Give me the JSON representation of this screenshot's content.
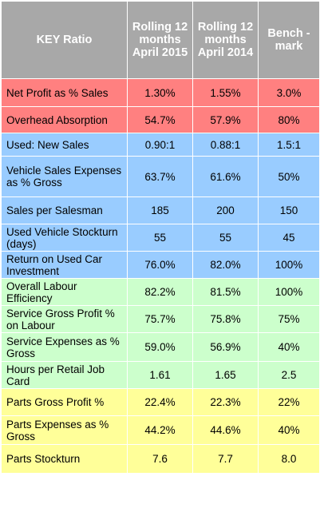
{
  "colors": {
    "header": "#a8a8a8",
    "red": "#ff8080",
    "blue": "#99ccff",
    "green": "#ccffcc",
    "yellow": "#ffff99"
  },
  "header": {
    "key": "KEY Ratio",
    "col2015": "Rolling 12 months April 2015",
    "col2014": "Rolling 12 months April 2014",
    "bench": "Bench -mark"
  },
  "rows": [
    {
      "label": "Net Profit as % Sales",
      "v2015": "1.30%",
      "v2014": "1.55%",
      "bench": "3.0%",
      "color": "red"
    },
    {
      "label": "Overhead Absorption",
      "v2015": "54.7%",
      "v2014": "57.9%",
      "bench": "80%",
      "color": "red"
    },
    {
      "label": "Used: New Sales",
      "v2015": "0.90:1",
      "v2014": "0.88:1",
      "bench": "1.5:1",
      "color": "blue"
    },
    {
      "label": "Vehicle Sales Expenses as % Gross",
      "v2015": "63.7%",
      "v2014": "61.6%",
      "bench": "50%",
      "color": "blue"
    },
    {
      "label": "Sales per Salesman",
      "v2015": "185",
      "v2014": "200",
      "bench": "150",
      "color": "blue"
    },
    {
      "label": "Used Vehicle Stockturn (days)",
      "v2015": "55",
      "v2014": "55",
      "bench": "45",
      "color": "blue"
    },
    {
      "label": "Return on Used Car Investment",
      "v2015": "76.0%",
      "v2014": "82.0%",
      "bench": "100%",
      "color": "blue"
    },
    {
      "label": "Overall Labour Efficiency",
      "v2015": "82.2%",
      "v2014": "81.5%",
      "bench": "100%",
      "color": "green"
    },
    {
      "label": "Service Gross Profit % on Labour",
      "v2015": "75.7%",
      "v2014": "75.8%",
      "bench": "75%",
      "color": "green"
    },
    {
      "label": "Service Expenses as % Gross",
      "v2015": "59.0%",
      "v2014": "56.9%",
      "bench": "40%",
      "color": "green"
    },
    {
      "label": "Hours per Retail Job Card",
      "v2015": "1.61",
      "v2014": "1.65",
      "bench": "2.5",
      "color": "green"
    },
    {
      "label": "Parts Gross Profit %",
      "v2015": "22.4%",
      "v2014": "22.3%",
      "bench": "22%",
      "color": "yellow"
    },
    {
      "label": "Parts Expenses as % Gross",
      "v2015": "44.2%",
      "v2014": "44.6%",
      "bench": "40%",
      "color": "yellow"
    },
    {
      "label": "Parts Stockturn",
      "v2015": "7.6",
      "v2014": "7.7",
      "bench": "8.0",
      "color": "yellow"
    }
  ]
}
